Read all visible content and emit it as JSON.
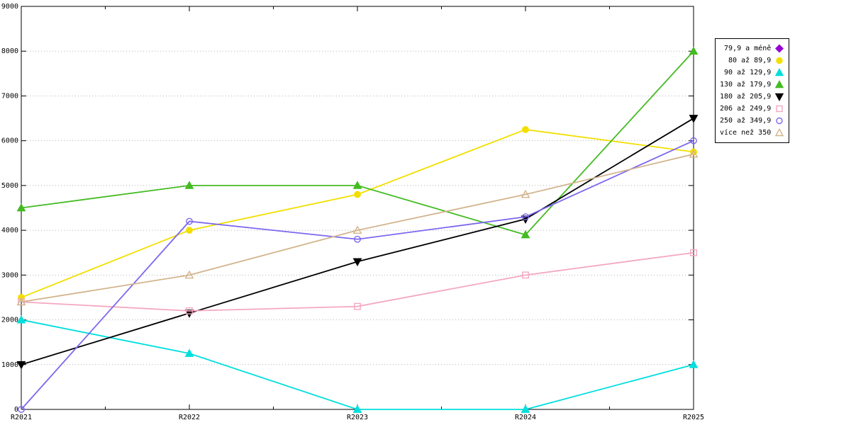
{
  "chart_data": {
    "type": "line",
    "title": "",
    "xlabel": "",
    "ylabel": "",
    "x_labels": [
      "R2021",
      "R2022",
      "R2023",
      "R2024",
      "R2025"
    ],
    "y_tick_labels": [
      "0",
      "1000",
      "2000",
      "3000",
      "4000",
      "5000",
      "6000",
      "7000",
      "8000",
      "9000"
    ],
    "ylim": [
      0,
      9000
    ],
    "ytick_step": 1000,
    "grid": "dotted-horizontal",
    "legend_position": "outside-top-right",
    "series": [
      {
        "name": "79,9 a méně",
        "color": "#9400d3",
        "marker": "diamond",
        "filled": true,
        "values": [
          null,
          null,
          null,
          null,
          null
        ]
      },
      {
        "name": "80 až 89,9",
        "color": "#f2df00",
        "marker": "circle",
        "filled": true,
        "values": [
          2500,
          4000,
          4800,
          6250,
          5750
        ]
      },
      {
        "name": "90 až 129,9",
        "color": "#00dede",
        "marker": "triangle",
        "filled": true,
        "values": [
          2000,
          1250,
          0,
          0,
          1000
        ]
      },
      {
        "name": "130 až 179,9",
        "color": "#44bb22",
        "marker": "triangle",
        "filled": true,
        "values": [
          4500,
          5000,
          5000,
          3900,
          8000
        ]
      },
      {
        "name": "180 až 205,9",
        "color": "#000000",
        "marker": "triangle-down",
        "filled": true,
        "values": [
          1000,
          2150,
          3300,
          4250,
          6500
        ]
      },
      {
        "name": "206 až 249,9",
        "color": "#f4a8c0",
        "marker": "square",
        "filled": false,
        "values": [
          2400,
          2200,
          2300,
          3000,
          3500
        ]
      },
      {
        "name": "250 až 349,9",
        "color": "#7b68ee",
        "marker": "circle",
        "filled": false,
        "values": [
          0,
          4200,
          3800,
          4300,
          6000
        ]
      },
      {
        "name": "více než 350",
        "color": "#d2b48c",
        "marker": "triangle",
        "filled": false,
        "values": [
          2400,
          3000,
          4000,
          4800,
          5700
        ]
      }
    ]
  }
}
